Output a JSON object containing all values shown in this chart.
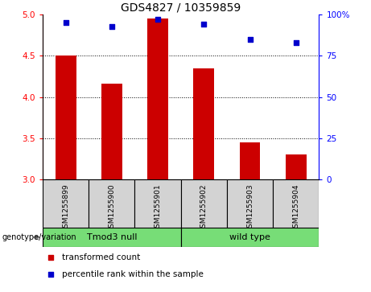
{
  "title": "GDS4827 / 10359859",
  "samples": [
    "GSM1255899",
    "GSM1255900",
    "GSM1255901",
    "GSM1255902",
    "GSM1255903",
    "GSM1255904"
  ],
  "transformed_counts": [
    4.5,
    4.16,
    4.95,
    4.35,
    3.45,
    3.3
  ],
  "percentile_ranks": [
    95,
    93,
    97,
    94,
    85,
    83
  ],
  "group1_label": "Tmod3 null",
  "group2_label": "wild type",
  "ylim_left": [
    3,
    5
  ],
  "ylim_right": [
    0,
    100
  ],
  "yticks_left": [
    3,
    3.5,
    4,
    4.5,
    5
  ],
  "yticks_right": [
    0,
    25,
    50,
    75,
    100
  ],
  "ytick_labels_right": [
    "0",
    "25",
    "50",
    "75",
    "100%"
  ],
  "bar_color": "#cc0000",
  "point_color": "#0000cc",
  "bar_width": 0.45,
  "bg_plot": "#ffffff",
  "bg_label": "#d3d3d3",
  "bg_group": "#77dd77",
  "genotype_label": "genotype/variation",
  "legend_bar_label": "transformed count",
  "legend_point_label": "percentile rank within the sample",
  "title_fontsize": 10,
  "tick_fontsize": 7.5,
  "sample_fontsize": 6.5,
  "group_fontsize": 8,
  "legend_fontsize": 7.5
}
